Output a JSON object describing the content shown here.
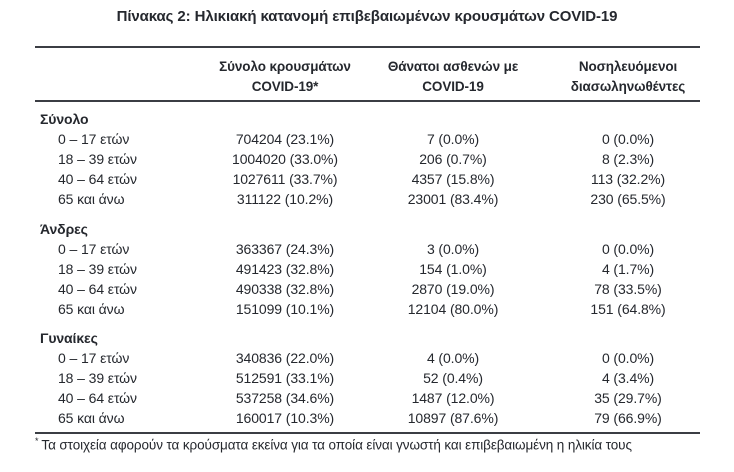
{
  "title": "Πίνακας 2: Ηλικιακή κατανομή επιβεβαιωμένων κρουσμάτων COVID-19",
  "table": {
    "columns": [
      {
        "line1": "Σύνολο κρουσμάτων",
        "line2": "COVID-19*"
      },
      {
        "line1": "Θάνατοι ασθενών με",
        "line2": "COVID-19"
      },
      {
        "line1": "Νοσηλευόμενοι",
        "line2": "διασωληνωθέντες"
      }
    ],
    "sections": [
      {
        "label": "Σύνολο",
        "rows": [
          {
            "age": "0 – 17 ετών",
            "cases": "704204 (23.1%)",
            "deaths": "7 (0.0%)",
            "intubated": "0 (0.0%)"
          },
          {
            "age": "18 – 39 ετών",
            "cases": "1004020 (33.0%)",
            "deaths": "206 (0.7%)",
            "intubated": "8 (2.3%)"
          },
          {
            "age": "40 – 64 ετών",
            "cases": "1027611 (33.7%)",
            "deaths": "4357 (15.8%)",
            "intubated": "113 (32.2%)"
          },
          {
            "age": "65 και άνω",
            "cases": "311122 (10.2%)",
            "deaths": "23001 (83.4%)",
            "intubated": "230 (65.5%)"
          }
        ]
      },
      {
        "label": "Άνδρες",
        "rows": [
          {
            "age": "0 – 17 ετών",
            "cases": "363367 (24.3%)",
            "deaths": "3 (0.0%)",
            "intubated": "0 (0.0%)"
          },
          {
            "age": "18 – 39 ετών",
            "cases": "491423 (32.8%)",
            "deaths": "154 (1.0%)",
            "intubated": "4 (1.7%)"
          },
          {
            "age": "40 – 64 ετών",
            "cases": "490338 (32.8%)",
            "deaths": "2870 (19.0%)",
            "intubated": "78 (33.5%)"
          },
          {
            "age": "65 και άνω",
            "cases": "151099 (10.1%)",
            "deaths": "12104 (80.0%)",
            "intubated": "151 (64.8%)"
          }
        ]
      },
      {
        "label": "Γυναίκες",
        "rows": [
          {
            "age": "0 – 17 ετών",
            "cases": "340836 (22.0%)",
            "deaths": "4 (0.0%)",
            "intubated": "0 (0.0%)"
          },
          {
            "age": "18 – 39 ετών",
            "cases": "512591 (33.1%)",
            "deaths": "52 (0.4%)",
            "intubated": "4 (3.4%)"
          },
          {
            "age": "40 – 64 ετών",
            "cases": "537258 (34.6%)",
            "deaths": "1487 (12.0%)",
            "intubated": "35 (29.7%)"
          },
          {
            "age": "65 και άνω",
            "cases": "160017 (10.3%)",
            "deaths": "10897 (87.6%)",
            "intubated": "79 (66.9%)"
          }
        ]
      }
    ]
  },
  "footnote": {
    "marker": "*",
    "text": "Τα στοιχεία αφορούν τα κρούσματα εκείνα για τα οποία είναι γνωστή και επιβεβαιωμένη η ηλικία τους"
  },
  "colors": {
    "text": "#25282e",
    "rule": "#3b3e44",
    "background": "#ffffff"
  }
}
